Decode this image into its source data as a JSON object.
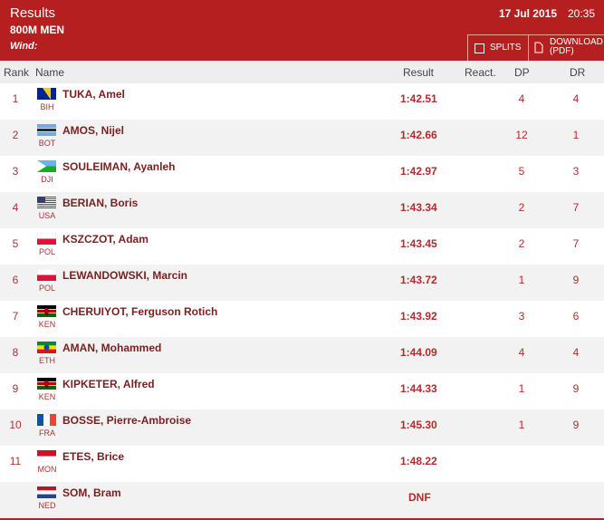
{
  "header": {
    "title": "Results",
    "event": "800M MEN",
    "wind": "Wind:",
    "date": "17 Jul 2015",
    "time": "20:35",
    "buttons": [
      "SPLITS",
      "DOWNLOAD (PDF)"
    ]
  },
  "table": {
    "columns": [
      "Rank",
      "Name",
      "Result",
      "React.",
      "DP",
      "DR"
    ],
    "rows": [
      {
        "rank": 1,
        "name": "TUKA, Amel",
        "country": "BIH",
        "result": "1:42.51",
        "dp": 4,
        "dr": 4
      },
      {
        "rank": 2,
        "name": "AMOS, Nijel",
        "country": "BOT",
        "result": "1:42.66",
        "dp": 12,
        "dr": 1
      },
      {
        "rank": 3,
        "name": "SOULEIMAN, Ayanleh",
        "country": "DJI",
        "result": "1:42.97",
        "dp": 5,
        "dr": 3
      },
      {
        "rank": 4,
        "name": "BERIAN, Boris",
        "country": "USA",
        "result": "1:43.34",
        "dp": 2,
        "dr": 7
      },
      {
        "rank": 5,
        "name": "KSZCZOT, Adam",
        "country": "POL",
        "result": "1:43.45",
        "dp": 2,
        "dr": 7
      },
      {
        "rank": 6,
        "name": "LEWANDOWSKI, Marcin",
        "country": "POL",
        "result": "1:43.72",
        "dp": 1,
        "dr": 9
      },
      {
        "rank": 7,
        "name": "CHERUIYOT, Ferguson Rotich",
        "country": "KEN",
        "result": "1:43.92",
        "dp": 3,
        "dr": 6
      },
      {
        "rank": 8,
        "name": "AMAN, Mohammed",
        "country": "ETH",
        "result": "1:44.09",
        "dp": 4,
        "dr": 4
      },
      {
        "rank": 9,
        "name": "KIPKETER, Alfred",
        "country": "KEN",
        "result": "1:44.33",
        "dp": 1,
        "dr": 9
      },
      {
        "rank": 10,
        "name": "BOSSE, Pierre-Ambroise",
        "country": "FRA",
        "result": "1:45.30",
        "dp": 1,
        "dr": 9
      },
      {
        "rank": 11,
        "name": "ETES, Brice",
        "country": "MON",
        "result": "1:48.22"
      },
      {
        "name": "SOM, Bram",
        "country": "NED",
        "result": "DNF"
      }
    ]
  }
}
